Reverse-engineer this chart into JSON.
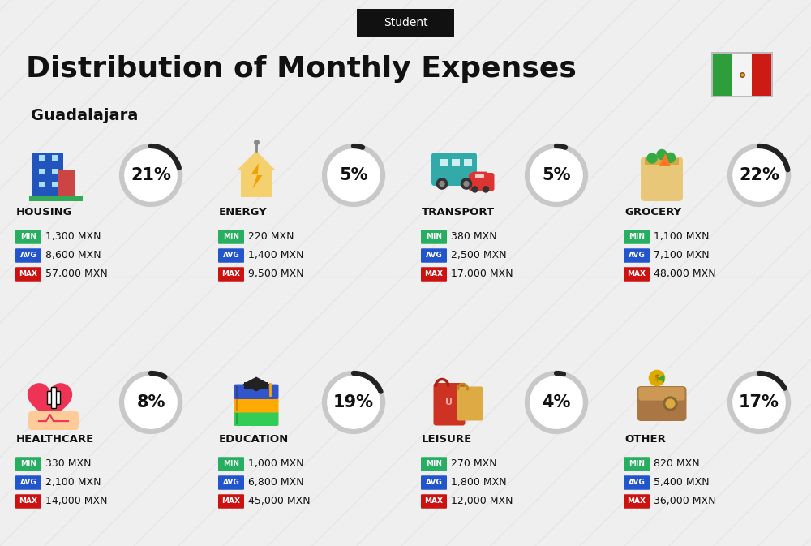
{
  "title": "Distribution of Monthly Expenses",
  "subtitle": "Student",
  "city": "Guadalajara",
  "bg_color": "#efefef",
  "stripe_color": "#e0e0e0",
  "categories": [
    {
      "name": "HOUSING",
      "pct": 21,
      "min": "1,300 MXN",
      "avg": "8,600 MXN",
      "max": "57,000 MXN",
      "icon": "housing",
      "row": 0,
      "col": 0
    },
    {
      "name": "ENERGY",
      "pct": 5,
      "min": "220 MXN",
      "avg": "1,400 MXN",
      "max": "9,500 MXN",
      "icon": "energy",
      "row": 0,
      "col": 1
    },
    {
      "name": "TRANSPORT",
      "pct": 5,
      "min": "380 MXN",
      "avg": "2,500 MXN",
      "max": "17,000 MXN",
      "icon": "transport",
      "row": 0,
      "col": 2
    },
    {
      "name": "GROCERY",
      "pct": 22,
      "min": "1,100 MXN",
      "avg": "7,100 MXN",
      "max": "48,000 MXN",
      "icon": "grocery",
      "row": 0,
      "col": 3
    },
    {
      "name": "HEALTHCARE",
      "pct": 8,
      "min": "330 MXN",
      "avg": "2,100 MXN",
      "max": "14,000 MXN",
      "icon": "healthcare",
      "row": 1,
      "col": 0
    },
    {
      "name": "EDUCATION",
      "pct": 19,
      "min": "1,000 MXN",
      "avg": "6,800 MXN",
      "max": "45,000 MXN",
      "icon": "education",
      "row": 1,
      "col": 1
    },
    {
      "name": "LEISURE",
      "pct": 4,
      "min": "270 MXN",
      "avg": "1,800 MXN",
      "max": "12,000 MXN",
      "icon": "leisure",
      "row": 1,
      "col": 2
    },
    {
      "name": "OTHER",
      "pct": 17,
      "min": "820 MXN",
      "avg": "5,400 MXN",
      "max": "36,000 MXN",
      "icon": "other",
      "row": 1,
      "col": 3
    }
  ],
  "min_color": "#27ae60",
  "avg_color": "#2255cc",
  "max_color": "#cc1111",
  "circle_bg": "#ffffff",
  "circle_ring": "#c8c8c8",
  "circle_arc": "#222222",
  "pct_fontsize": 15,
  "name_fontsize": 9.5,
  "val_fontsize": 9,
  "badge_fontsize": 6.5,
  "title_fontsize": 26,
  "subtitle_fontsize": 10,
  "city_fontsize": 14,
  "fig_w": 10.0,
  "fig_h": 6.73,
  "dpi": 100
}
